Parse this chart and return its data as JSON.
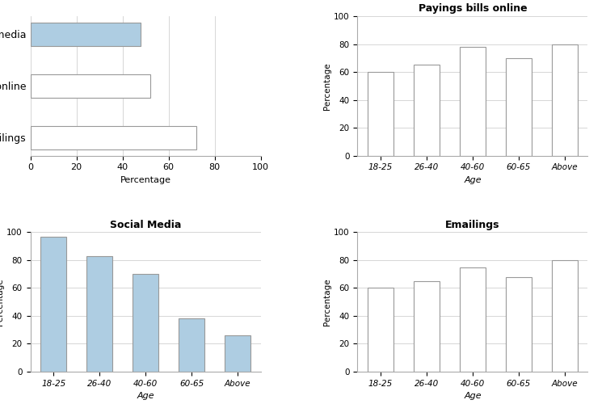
{
  "age_groups": [
    "18-25",
    "26-40",
    "40-60",
    "60-65",
    "Above"
  ],
  "paying_bills_values": [
    60,
    65,
    78,
    70,
    80
  ],
  "social_media_values": [
    97,
    83,
    70,
    38,
    26
  ],
  "emailings_values": [
    60,
    65,
    75,
    68,
    80
  ],
  "bar_summary": {
    "categories": [
      "Emailings",
      "Paying bills online",
      "Social media"
    ],
    "values": [
      72,
      52,
      48
    ],
    "colors": [
      "#ffffff",
      "#ffffff",
      "#aecde2"
    ]
  },
  "paying_bills_color": "#ffffff",
  "social_media_color": "#aecde2",
  "emailings_color": "#ffffff",
  "bar_edge_color": "#999999",
  "title_paying": "Payings bills online",
  "title_social": "Social Media",
  "title_emailings": "Emailings",
  "xlabel": "Age",
  "ylabel": "Percentage",
  "xlim_summary": [
    0,
    100
  ],
  "ylim_charts": [
    0,
    100
  ],
  "summary_xlabel": "Percentage",
  "background_color": "#ffffff",
  "grid_color": "#d0d0d0"
}
